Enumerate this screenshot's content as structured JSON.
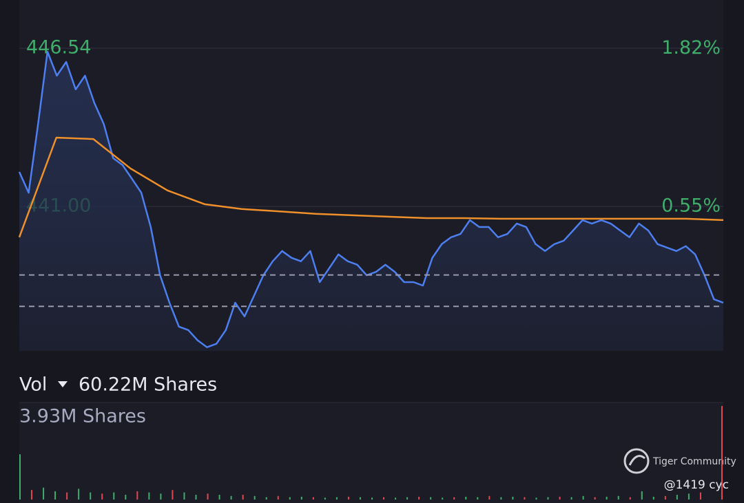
{
  "chart_data": [
    {
      "type": "line",
      "ylim": [
        435.94,
        448.23
      ],
      "yticks": [
        446.54,
        {
          "value": 441,
          "label": "441.00"
        }
      ],
      "y2lim": [
        -0.61,
        2.21
      ],
      "y2ticks": [
        {
          "value": 1.82,
          "label": "1.82%"
        },
        {
          "value": 0.55,
          "label": "0.55%"
        }
      ],
      "grid": true,
      "reference_lines": [
        438.6,
        437.5
      ],
      "series": [
        {
          "color": "#4d7ff0",
          "values": [
            442.21,
            441.48,
            443.89,
            446.42,
            445.58,
            446.06,
            445.1,
            445.58,
            444.62,
            443.89,
            442.69,
            442.45,
            441.97,
            441.48,
            440.28,
            438.59,
            437.63,
            436.79,
            436.67,
            436.31,
            436.07,
            436.19,
            436.67,
            437.63,
            437.15,
            437.87,
            438.59,
            439.08,
            439.44,
            439.2,
            439.08,
            439.44,
            438.35,
            438.83,
            439.32,
            439.08,
            438.96,
            438.59,
            438.71,
            438.96,
            438.71,
            438.35,
            438.35,
            438.23,
            439.2,
            439.68,
            439.92,
            440.04,
            440.52,
            440.28,
            440.28,
            439.92,
            440.04,
            440.4,
            440.28,
            439.68,
            439.44,
            439.68,
            439.8,
            440.16,
            440.52,
            440.4,
            440.52,
            440.4,
            440.16,
            439.92,
            440.4,
            440.16,
            439.68,
            439.56,
            439.44,
            439.61,
            439.32,
            438.59,
            437.75,
            437.63
          ]
        },
        {
          "color": "#f0902a",
          "values": [
            439.92,
            443.41,
            443.36,
            442.33,
            441.56,
            441.08,
            440.91,
            440.83,
            440.74,
            440.69,
            440.64,
            440.59,
            440.59,
            440.57,
            440.57,
            440.57,
            440.57,
            440.57,
            440.57,
            440.52
          ]
        }
      ]
    },
    {
      "type": "bar",
      "title": "Vol",
      "total_label": "60.22M Shares",
      "ylim": [
        0,
        3.93
      ],
      "yticks": [
        {
          "value": 3.93,
          "label": "3.93M Shares"
        }
      ],
      "values": [
        1.9,
        0.4,
        0.5,
        0.35,
        0.3,
        0.45,
        0.3,
        0.25,
        0.3,
        0.2,
        0.35,
        0.3,
        0.25,
        0.4,
        0.3,
        0.2,
        0.25,
        0.2,
        0.15,
        0.2,
        0.15,
        0.1,
        0.15,
        0.1,
        0.12,
        0.1,
        0.08,
        0.1,
        0.12,
        0.1,
        0.08,
        0.1,
        0.08,
        0.1,
        0.12,
        0.1,
        0.08,
        0.1,
        0.12,
        0.1,
        0.15,
        0.1,
        0.12,
        0.1,
        0.08,
        0.1,
        0.12,
        0.1,
        0.15,
        0.1,
        0.12,
        0.15,
        0.1,
        0.35,
        0.12,
        0.15,
        0.2,
        0.25,
        0.3,
        3.93
      ],
      "colors": [
        "#3fae6a",
        "#e0484f"
      ]
    }
  ],
  "watermark": {
    "brand": "Tiger Community",
    "user": "@1419 cyc"
  }
}
